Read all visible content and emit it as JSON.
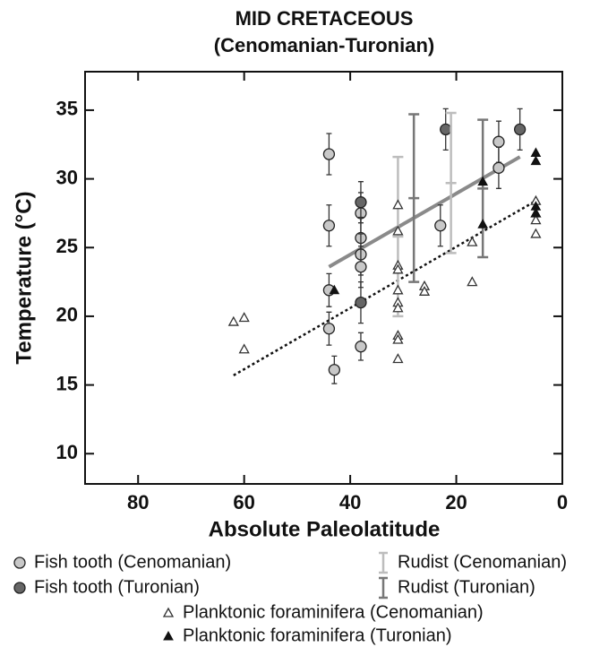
{
  "chart_data": {
    "type": "scatter",
    "title": "MID CRETACEOUS",
    "subtitle": "(Cenomanian-Turonian)",
    "x_label": "Absolute Paleolatitude",
    "y_label": "Temperature (°C)",
    "xlim": [
      90,
      0
    ],
    "xticks": [
      80,
      60,
      40,
      20,
      0
    ],
    "ylim": [
      7.8,
      37.8
    ],
    "yticks": [
      10,
      15,
      20,
      25,
      30,
      35
    ],
    "series": [
      {
        "name": "Fish tooth (Cenomanian)",
        "marker": "circle",
        "color": "#c8c8c8",
        "x": [
          44,
          44,
          44,
          43,
          38,
          38,
          38,
          38,
          38,
          44,
          23,
          12,
          12
        ],
        "values": [
          31.8,
          26.6,
          19.1,
          16.1,
          27.5,
          25.7,
          24.5,
          23.6,
          17.8,
          21.9,
          26.6,
          32.7,
          30.8
        ],
        "errors": [
          1.5,
          1.5,
          1.2,
          1.0,
          1.5,
          1.5,
          1.5,
          1.5,
          1.0,
          1.2,
          1.5,
          1.5,
          1.5
        ]
      },
      {
        "name": "Fish tooth (Turonian)",
        "marker": "circle",
        "color": "#666666",
        "x": [
          38,
          38,
          22,
          8
        ],
        "values": [
          28.3,
          21.0,
          33.6,
          33.6
        ],
        "errors": [
          1.5,
          1.5,
          1.5,
          1.5
        ]
      },
      {
        "name": "Rudist (Cenomanian)",
        "marker": "bar",
        "color": "#bdbdbd",
        "x": [
          31,
          21
        ],
        "values": [
          25.8,
          29.7
        ],
        "errors": [
          5.8,
          5.1
        ]
      },
      {
        "name": "Rudist (Turonian)",
        "marker": "bar",
        "color": "#777777",
        "x": [
          28,
          15
        ],
        "values": [
          28.6,
          29.3
        ],
        "errors": [
          6.1,
          5.0
        ]
      },
      {
        "name": "Planktonic foraminifera (Cenomanian)",
        "marker": "triangle-open",
        "color": "#333333",
        "x": [
          62,
          60,
          60,
          31,
          31,
          31,
          31,
          31,
          31,
          31,
          31,
          31,
          31,
          26,
          26,
          17,
          17,
          5,
          5,
          5,
          5
        ],
        "values": [
          19.6,
          19.9,
          17.6,
          28.1,
          26.2,
          23.7,
          23.4,
          21.9,
          21.0,
          20.6,
          18.6,
          18.3,
          16.9,
          22.2,
          21.8,
          25.4,
          22.5,
          28.4,
          27.0,
          26.0,
          27.5
        ]
      },
      {
        "name": "Planktonic foraminifera (Turonian)",
        "marker": "triangle-filled",
        "color": "#111111",
        "x": [
          43,
          15,
          15,
          5,
          5,
          5,
          5
        ],
        "values": [
          21.9,
          29.8,
          26.7,
          31.9,
          31.3,
          28.0,
          27.5
        ]
      }
    ],
    "fits": [
      {
        "x": [
          44,
          8
        ],
        "values": [
          23.6,
          31.6
        ],
        "color": "#8a8a8a",
        "style": "solid"
      },
      {
        "x": [
          62,
          5
        ],
        "values": [
          15.7,
          28.4
        ],
        "color": "#111111",
        "style": "dotted"
      }
    ]
  }
}
